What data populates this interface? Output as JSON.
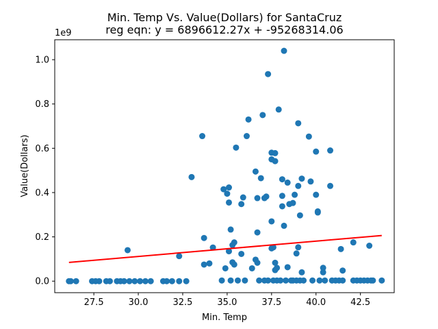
{
  "chart_data": {
    "type": "scatter",
    "title_line1": "Min. Temp Vs. Value(Dollars) for SantaCruz",
    "title_line2": "reg eqn: y = 6896612.27x + -95268314.06",
    "xlabel": "Min. Temp",
    "ylabel": "Value(Dollars)",
    "y_offset_label": "1e9",
    "xlim": [
      25.3,
      44.4
    ],
    "ylim": [
      -0.052,
      1.09
    ],
    "x_ticks": [
      27.5,
      30.0,
      32.5,
      35.0,
      37.5,
      40.0,
      42.5
    ],
    "x_tick_labels": [
      "27.5",
      "30.0",
      "32.5",
      "35.0",
      "37.5",
      "40.0",
      "42.5"
    ],
    "y_ticks": [
      0.0,
      0.2,
      0.4,
      0.6,
      0.8,
      1.0
    ],
    "y_tick_labels": [
      "0.0",
      "0.2",
      "0.4",
      "0.6",
      "0.8",
      "1.0"
    ],
    "grid": false,
    "point_color": "#1f77b4",
    "line_color": "#ff0000",
    "regression": {
      "slope": 6896612.27,
      "intercept": -95268314.06,
      "x_range": [
        26.1,
        43.7
      ]
    },
    "points": [
      [
        26.1,
        0
      ],
      [
        26.2,
        0
      ],
      [
        26.5,
        0
      ],
      [
        27.4,
        0
      ],
      [
        27.6,
        0
      ],
      [
        27.8,
        0
      ],
      [
        28.2,
        0
      ],
      [
        28.4,
        0
      ],
      [
        28.8,
        0
      ],
      [
        29.0,
        0
      ],
      [
        29.2,
        0
      ],
      [
        29.5,
        0
      ],
      [
        29.8,
        0
      ],
      [
        30.1,
        0
      ],
      [
        30.4,
        0
      ],
      [
        30.7,
        0
      ],
      [
        31.4,
        0
      ],
      [
        31.6,
        0
      ],
      [
        31.9,
        0
      ],
      [
        32.3,
        0
      ],
      [
        32.7,
        0
      ],
      [
        29.4,
        0.14
      ],
      [
        32.3,
        0.113
      ],
      [
        33.0,
        0.47
      ],
      [
        33.6,
        0.655
      ],
      [
        33.7,
        0.195
      ],
      [
        33.7,
        0.075
      ],
      [
        34.0,
        0.08
      ],
      [
        34.2,
        0.152
      ],
      [
        34.7,
        0.003
      ],
      [
        34.8,
        0.415
      ],
      [
        34.9,
        0.058
      ],
      [
        35.0,
        0.395
      ],
      [
        35.1,
        0.423
      ],
      [
        35.1,
        0.355
      ],
      [
        35.1,
        0.135
      ],
      [
        35.2,
        0.003
      ],
      [
        35.2,
        0.233
      ],
      [
        35.3,
        0.163
      ],
      [
        35.3,
        0.085
      ],
      [
        35.4,
        0.175
      ],
      [
        35.4,
        0.075
      ],
      [
        35.5,
        0.603
      ],
      [
        35.6,
        0.003
      ],
      [
        35.8,
        0.123
      ],
      [
        35.8,
        0.348
      ],
      [
        35.9,
        0.378
      ],
      [
        36.0,
        0.003
      ],
      [
        36.1,
        0.655
      ],
      [
        36.2,
        0.73
      ],
      [
        36.4,
        0.058
      ],
      [
        36.6,
        0.495
      ],
      [
        36.6,
        0.097
      ],
      [
        36.7,
        0.083
      ],
      [
        36.7,
        0.375
      ],
      [
        36.7,
        0.22
      ],
      [
        36.8,
        0.003
      ],
      [
        36.9,
        0.465
      ],
      [
        37.0,
        0.75
      ],
      [
        37.1,
        0.375
      ],
      [
        37.1,
        0.003
      ],
      [
        37.2,
        0.382
      ],
      [
        37.3,
        0.935
      ],
      [
        37.3,
        0.003
      ],
      [
        37.5,
        0.27
      ],
      [
        37.5,
        0.58
      ],
      [
        37.5,
        0.55
      ],
      [
        37.5,
        0.148
      ],
      [
        37.6,
        0.153
      ],
      [
        37.6,
        0.003
      ],
      [
        37.7,
        0.542
      ],
      [
        37.7,
        0.578
      ],
      [
        37.7,
        0.083
      ],
      [
        37.7,
        0.05
      ],
      [
        37.8,
        0.06
      ],
      [
        37.8,
        0.003
      ],
      [
        37.9,
        0.775
      ],
      [
        38.0,
        0.003
      ],
      [
        38.1,
        0.46
      ],
      [
        38.1,
        0.385
      ],
      [
        38.1,
        0.338
      ],
      [
        38.2,
        1.04
      ],
      [
        38.2,
        0.25
      ],
      [
        38.3,
        0.003
      ],
      [
        38.4,
        0.445
      ],
      [
        38.4,
        0.063
      ],
      [
        38.5,
        0.348
      ],
      [
        38.6,
        0.003
      ],
      [
        38.7,
        0.353
      ],
      [
        38.7,
        0.003
      ],
      [
        38.8,
        0.39
      ],
      [
        38.9,
        0.003
      ],
      [
        38.9,
        0.125
      ],
      [
        39.0,
        0.713
      ],
      [
        39.0,
        0.43
      ],
      [
        39.0,
        0.153
      ],
      [
        39.1,
        0.297
      ],
      [
        39.1,
        0.003
      ],
      [
        39.2,
        0.463
      ],
      [
        39.2,
        0.04
      ],
      [
        39.3,
        0.003
      ],
      [
        39.6,
        0.653
      ],
      [
        39.7,
        0.45
      ],
      [
        39.8,
        0.003
      ],
      [
        40.0,
        0.585
      ],
      [
        40.0,
        0.39
      ],
      [
        40.1,
        0.315
      ],
      [
        40.1,
        0.31
      ],
      [
        40.2,
        0.003
      ],
      [
        40.4,
        0.06
      ],
      [
        40.4,
        0.04
      ],
      [
        40.5,
        0.003
      ],
      [
        40.8,
        0.59
      ],
      [
        40.8,
        0.43
      ],
      [
        40.9,
        0.003
      ],
      [
        41.1,
        0.003
      ],
      [
        41.3,
        0.003
      ],
      [
        41.4,
        0.145
      ],
      [
        41.5,
        0.048
      ],
      [
        41.5,
        0.003
      ],
      [
        42.1,
        0.175
      ],
      [
        42.1,
        0.003
      ],
      [
        42.3,
        0.003
      ],
      [
        42.5,
        0.003
      ],
      [
        42.7,
        0.003
      ],
      [
        42.9,
        0.003
      ],
      [
        43.0,
        0.16
      ],
      [
        43.1,
        0.003
      ],
      [
        43.2,
        0.003
      ],
      [
        43.7,
        0.003
      ]
    ]
  }
}
